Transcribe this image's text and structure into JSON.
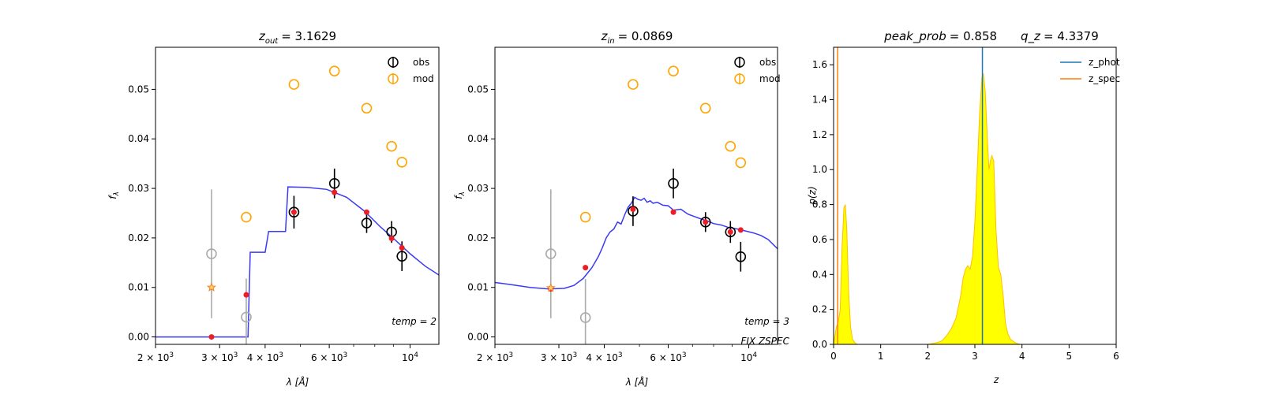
{
  "chart_data": [
    {
      "type": "scatter",
      "title_var": "z",
      "title_sub": "out",
      "title_value": "= 3.1629",
      "xlabel": "λ [Å]",
      "ylabel": "f",
      "ylabel_sub": "λ",
      "xscale": "log",
      "xlim": [
        2000,
        12000
      ],
      "ylim": [
        -0.0015,
        0.0585
      ],
      "xticks": [
        {
          "value": 2000,
          "base": "2 × 10",
          "exp": "3"
        },
        {
          "value": 3000,
          "base": "3 × 10",
          "exp": "3"
        },
        {
          "value": 4000,
          "base": "4 × 10",
          "exp": "3"
        },
        {
          "value": 6000,
          "base": "6 × 10",
          "exp": "3"
        },
        {
          "value": 10000,
          "base": "10",
          "exp": "4"
        }
      ],
      "yticks": [
        {
          "value": 0.0,
          "label": "0.00"
        },
        {
          "value": 0.01,
          "label": "0.01"
        },
        {
          "value": 0.02,
          "label": "0.02"
        },
        {
          "value": 0.03,
          "label": "0.03"
        },
        {
          "value": 0.04,
          "label": "0.04"
        },
        {
          "value": 0.05,
          "label": "0.05"
        }
      ],
      "legend": {
        "position": "top-right",
        "entries": [
          "obs",
          "mod"
        ]
      },
      "annotations": [
        "temp = 2"
      ],
      "model_sed": [
        [
          2000,
          0.0
        ],
        [
          3590,
          0.0
        ],
        [
          3640,
          0.0171
        ],
        [
          3890,
          0.0171
        ],
        [
          4000,
          0.0171
        ],
        [
          4090,
          0.0213
        ],
        [
          4550,
          0.0213
        ],
        [
          4620,
          0.0303
        ],
        [
          5200,
          0.0302
        ],
        [
          5900,
          0.0298
        ],
        [
          6700,
          0.0282
        ],
        [
          7500,
          0.0254
        ],
        [
          8300,
          0.0222
        ],
        [
          9000,
          0.0199
        ],
        [
          10000,
          0.0168
        ],
        [
          11000,
          0.0143
        ],
        [
          12000,
          0.0125
        ]
      ],
      "obs": [
        {
          "x": 4800,
          "y": 0.0252,
          "err": 0.0033
        },
        {
          "x": 6200,
          "y": 0.031,
          "err": 0.003
        },
        {
          "x": 7600,
          "y": 0.023,
          "err": 0.002
        },
        {
          "x": 8900,
          "y": 0.0212,
          "err": 0.0022
        },
        {
          "x": 9500,
          "y": 0.0163,
          "err": 0.003
        }
      ],
      "obs_gray": [
        {
          "x": 2850,
          "y": 0.0168,
          "err": 0.013
        },
        {
          "x": 3550,
          "y": 0.004,
          "err": 0.0078
        }
      ],
      "mod": [
        {
          "x": 3550,
          "y": 0.0242
        },
        {
          "x": 4800,
          "y": 0.051
        },
        {
          "x": 6200,
          "y": 0.0537
        },
        {
          "x": 7600,
          "y": 0.0462
        },
        {
          "x": 8900,
          "y": 0.0385
        },
        {
          "x": 9500,
          "y": 0.0353
        }
      ],
      "model_fluxes": [
        {
          "x": 2850,
          "y": 0.0
        },
        {
          "x": 3550,
          "y": 0.0085
        },
        {
          "x": 4800,
          "y": 0.0252
        },
        {
          "x": 6200,
          "y": 0.0292
        },
        {
          "x": 7600,
          "y": 0.0252
        },
        {
          "x": 8900,
          "y": 0.0199
        },
        {
          "x": 9500,
          "y": 0.018
        }
      ],
      "star": [
        {
          "x": 2850,
          "y": 0.01
        }
      ],
      "colors": {
        "sed": "#3a3af5",
        "obs": "#000000",
        "obs_gray": "#aaaaaa",
        "mod": "#ffa500",
        "model_flux": "#ee1c24",
        "star": "#f58220"
      }
    },
    {
      "type": "scatter",
      "title_var": "z",
      "title_sub": "in",
      "title_value": "= 0.0869",
      "xlabel": "λ [Å]",
      "ylabel": "f",
      "ylabel_sub": "λ",
      "xscale": "log",
      "xlim": [
        2000,
        12000
      ],
      "ylim": [
        -0.0015,
        0.0585
      ],
      "xticks": [
        {
          "value": 2000,
          "base": "2 × 10",
          "exp": "3"
        },
        {
          "value": 3000,
          "base": "3 × 10",
          "exp": "3"
        },
        {
          "value": 4000,
          "base": "4 × 10",
          "exp": "3"
        },
        {
          "value": 6000,
          "base": "6 × 10",
          "exp": "3"
        },
        {
          "value": 10000,
          "base": "10",
          "exp": "4"
        }
      ],
      "yticks": [
        {
          "value": 0.0,
          "label": "0.00"
        },
        {
          "value": 0.01,
          "label": "0.01"
        },
        {
          "value": 0.02,
          "label": "0.02"
        },
        {
          "value": 0.03,
          "label": "0.03"
        },
        {
          "value": 0.04,
          "label": "0.04"
        },
        {
          "value": 0.05,
          "label": "0.05"
        }
      ],
      "legend": {
        "position": "top-right",
        "entries": [
          "obs",
          "mod"
        ]
      },
      "annotations": [
        "temp = 3",
        "FIX ZSPEC"
      ],
      "model_sed": [
        [
          2000,
          0.011
        ],
        [
          2200,
          0.0106
        ],
        [
          2500,
          0.01
        ],
        [
          2800,
          0.0097
        ],
        [
          3100,
          0.0098
        ],
        [
          3300,
          0.0104
        ],
        [
          3500,
          0.0118
        ],
        [
          3700,
          0.014
        ],
        [
          3850,
          0.0162
        ],
        [
          3950,
          0.018
        ],
        [
          4050,
          0.02
        ],
        [
          4150,
          0.0212
        ],
        [
          4250,
          0.0218
        ],
        [
          4350,
          0.0232
        ],
        [
          4450,
          0.0228
        ],
        [
          4550,
          0.0246
        ],
        [
          4650,
          0.0262
        ],
        [
          4750,
          0.027
        ],
        [
          4850,
          0.0282
        ],
        [
          4950,
          0.0278
        ],
        [
          5050,
          0.0276
        ],
        [
          5150,
          0.028
        ],
        [
          5250,
          0.0272
        ],
        [
          5350,
          0.0275
        ],
        [
          5450,
          0.027
        ],
        [
          5600,
          0.0272
        ],
        [
          5800,
          0.0266
        ],
        [
          6000,
          0.0265
        ],
        [
          6200,
          0.0256
        ],
        [
          6500,
          0.0258
        ],
        [
          6800,
          0.0248
        ],
        [
          7100,
          0.0243
        ],
        [
          7400,
          0.0238
        ],
        [
          7700,
          0.0234
        ],
        [
          8000,
          0.0229
        ],
        [
          8400,
          0.0226
        ],
        [
          8800,
          0.0221
        ],
        [
          9300,
          0.0218
        ],
        [
          9800,
          0.0214
        ],
        [
          10300,
          0.021
        ],
        [
          10800,
          0.0205
        ],
        [
          11300,
          0.0197
        ],
        [
          12000,
          0.0178
        ]
      ],
      "obs": [
        {
          "x": 4800,
          "y": 0.0254,
          "err": 0.003
        },
        {
          "x": 6200,
          "y": 0.031,
          "err": 0.003
        },
        {
          "x": 7600,
          "y": 0.0232,
          "err": 0.002
        },
        {
          "x": 8900,
          "y": 0.0212,
          "err": 0.0022
        },
        {
          "x": 9500,
          "y": 0.0162,
          "err": 0.003
        }
      ],
      "obs_gray": [
        {
          "x": 2850,
          "y": 0.0168,
          "err": 0.013
        },
        {
          "x": 3550,
          "y": 0.0039,
          "err": 0.0078
        }
      ],
      "mod": [
        {
          "x": 3550,
          "y": 0.0242
        },
        {
          "x": 4800,
          "y": 0.051
        },
        {
          "x": 6200,
          "y": 0.0537
        },
        {
          "x": 7600,
          "y": 0.0462
        },
        {
          "x": 8900,
          "y": 0.0385
        },
        {
          "x": 9500,
          "y": 0.0352
        }
      ],
      "model_fluxes": [
        {
          "x": 2850,
          "y": 0.0097
        },
        {
          "x": 3550,
          "y": 0.014
        },
        {
          "x": 4800,
          "y": 0.0258
        },
        {
          "x": 6200,
          "y": 0.0252
        },
        {
          "x": 7600,
          "y": 0.0232
        },
        {
          "x": 8900,
          "y": 0.0212
        },
        {
          "x": 9500,
          "y": 0.0216
        }
      ],
      "star": [
        {
          "x": 2850,
          "y": 0.0099
        }
      ],
      "colors": {
        "sed": "#3a3af5",
        "obs": "#000000",
        "obs_gray": "#aaaaaa",
        "mod": "#ffa500",
        "model_flux": "#ee1c24",
        "star": "#f58220"
      }
    },
    {
      "type": "area",
      "title_left_var": "peak_prob",
      "title_left_value": "= 0.858",
      "title_right_var": "q_z",
      "title_right_value": "= 4.3379",
      "xlabel": "z",
      "ylabel": "p(z)",
      "xlim": [
        0,
        6
      ],
      "ylim": [
        0,
        1.7
      ],
      "xticks": [
        0,
        1,
        2,
        3,
        4,
        5,
        6
      ],
      "yticks": [
        {
          "value": 0.0,
          "label": "0.0"
        },
        {
          "value": 0.2,
          "label": "0.2"
        },
        {
          "value": 0.4,
          "label": "0.4"
        },
        {
          "value": 0.6,
          "label": "0.6"
        },
        {
          "value": 0.8,
          "label": "0.8"
        },
        {
          "value": 1.0,
          "label": "1.0"
        },
        {
          "value": 1.2,
          "label": "1.2"
        },
        {
          "value": 1.4,
          "label": "1.4"
        },
        {
          "value": 1.6,
          "label": "1.6"
        }
      ],
      "legend": {
        "position": "top-right",
        "entries": [
          "z_phot",
          "z_spec"
        ]
      },
      "z_phot": 3.16,
      "z_spec": 0.087,
      "pz": [
        [
          0,
          0.0
        ],
        [
          0.03,
          0.05
        ],
        [
          0.06,
          0.1
        ],
        [
          0.1,
          0.13
        ],
        [
          0.14,
          0.2
        ],
        [
          0.18,
          0.55
        ],
        [
          0.22,
          0.78
        ],
        [
          0.25,
          0.8
        ],
        [
          0.28,
          0.66
        ],
        [
          0.32,
          0.3
        ],
        [
          0.36,
          0.1
        ],
        [
          0.4,
          0.03
        ],
        [
          0.45,
          0.01
        ],
        [
          0.5,
          0.0
        ],
        [
          2.0,
          0.0
        ],
        [
          2.1,
          0.005
        ],
        [
          2.2,
          0.01
        ],
        [
          2.3,
          0.02
        ],
        [
          2.4,
          0.05
        ],
        [
          2.5,
          0.09
        ],
        [
          2.6,
          0.15
        ],
        [
          2.7,
          0.28
        ],
        [
          2.75,
          0.38
        ],
        [
          2.8,
          0.43
        ],
        [
          2.85,
          0.45
        ],
        [
          2.9,
          0.43
        ],
        [
          2.95,
          0.5
        ],
        [
          3.0,
          0.7
        ],
        [
          3.05,
          1.0
        ],
        [
          3.1,
          1.32
        ],
        [
          3.15,
          1.53
        ],
        [
          3.18,
          1.55
        ],
        [
          3.22,
          1.45
        ],
        [
          3.27,
          1.15
        ],
        [
          3.3,
          1.0
        ],
        [
          3.33,
          1.05
        ],
        [
          3.36,
          1.08
        ],
        [
          3.4,
          1.05
        ],
        [
          3.45,
          0.65
        ],
        [
          3.5,
          0.44
        ],
        [
          3.55,
          0.4
        ],
        [
          3.6,
          0.28
        ],
        [
          3.65,
          0.12
        ],
        [
          3.7,
          0.06
        ],
        [
          3.75,
          0.03
        ],
        [
          3.85,
          0.01
        ],
        [
          3.95,
          0.0
        ],
        [
          5.0,
          0.0
        ]
      ],
      "colors": {
        "fill": "#ffff00",
        "edge": "#ffbf00",
        "z_phot": "#1f77b4",
        "z_spec": "#ff7f0e"
      }
    }
  ]
}
